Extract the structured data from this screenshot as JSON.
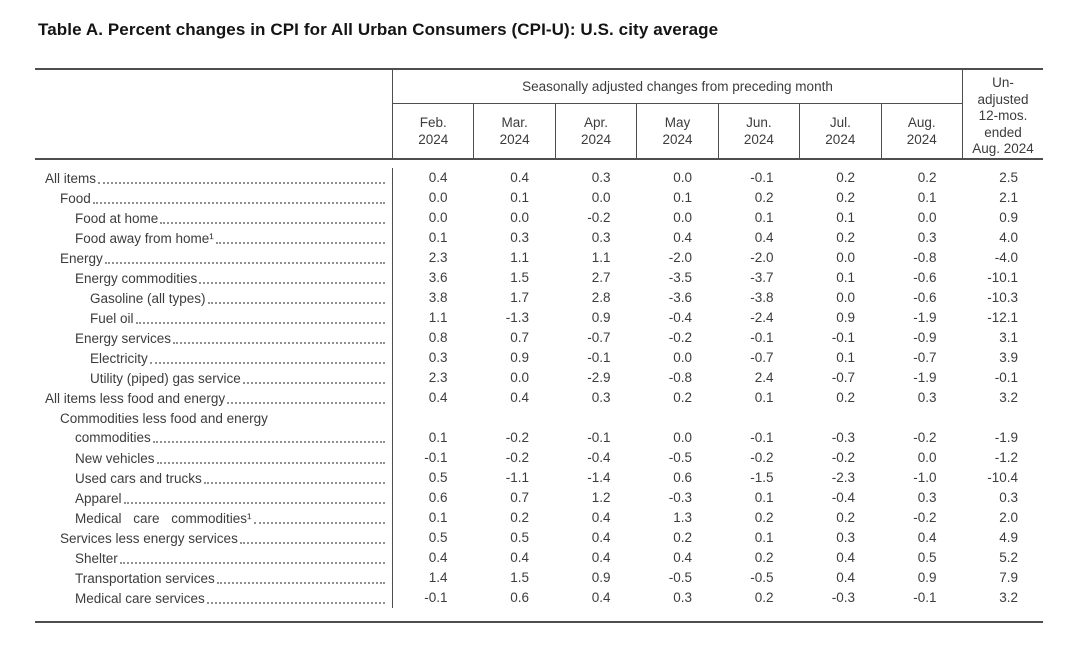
{
  "page": {
    "title": "Table A. Percent changes in CPI for All Urban Consumers (CPI-U): U.S. city average"
  },
  "table": {
    "col_group_header": "Seasonally adjusted changes from preceding month",
    "unadjusted_header_lines": [
      "Un-",
      "adjusted",
      "12-mos.",
      "ended",
      "Aug. 2024"
    ],
    "month_columns": [
      {
        "month": "Feb.",
        "year": "2024"
      },
      {
        "month": "Mar.",
        "year": "2024"
      },
      {
        "month": "Apr.",
        "year": "2024"
      },
      {
        "month": "May",
        "year": "2024"
      },
      {
        "month": "Jun.",
        "year": "2024"
      },
      {
        "month": "Jul.",
        "year": "2024"
      },
      {
        "month": "Aug.",
        "year": "2024"
      }
    ],
    "rows": [
      {
        "label": "All items",
        "indent": 0,
        "values": [
          "0.4",
          "0.4",
          "0.3",
          "0.0",
          "-0.1",
          "0.2",
          "0.2",
          "2.5"
        ]
      },
      {
        "label": "Food",
        "indent": 1,
        "values": [
          "0.0",
          "0.1",
          "0.0",
          "0.1",
          "0.2",
          "0.2",
          "0.1",
          "2.1"
        ]
      },
      {
        "label": "Food at home",
        "indent": 2,
        "values": [
          "0.0",
          "0.0",
          "-0.2",
          "0.0",
          "0.1",
          "0.1",
          "0.0",
          "0.9"
        ]
      },
      {
        "label": "Food away from home¹",
        "indent": 2,
        "values": [
          "0.1",
          "0.3",
          "0.3",
          "0.4",
          "0.4",
          "0.2",
          "0.3",
          "4.0"
        ]
      },
      {
        "label": "Energy",
        "indent": 1,
        "values": [
          "2.3",
          "1.1",
          "1.1",
          "-2.0",
          "-2.0",
          "0.0",
          "-0.8",
          "-4.0"
        ]
      },
      {
        "label": "Energy commodities",
        "indent": 2,
        "values": [
          "3.6",
          "1.5",
          "2.7",
          "-3.5",
          "-3.7",
          "0.1",
          "-0.6",
          "-10.1"
        ]
      },
      {
        "label": "Gasoline (all types)",
        "indent": 3,
        "values": [
          "3.8",
          "1.7",
          "2.8",
          "-3.6",
          "-3.8",
          "0.0",
          "-0.6",
          "-10.3"
        ]
      },
      {
        "label": "Fuel oil",
        "indent": 3,
        "values": [
          "1.1",
          "-1.3",
          "0.9",
          "-0.4",
          "-2.4",
          "0.9",
          "-1.9",
          "-12.1"
        ]
      },
      {
        "label": "Energy services",
        "indent": 2,
        "values": [
          "0.8",
          "0.7",
          "-0.7",
          "-0.2",
          "-0.1",
          "-0.1",
          "-0.9",
          "3.1"
        ]
      },
      {
        "label": "Electricity",
        "indent": 3,
        "values": [
          "0.3",
          "0.9",
          "-0.1",
          "0.0",
          "-0.7",
          "0.1",
          "-0.7",
          "3.9"
        ]
      },
      {
        "label": "Utility (piped) gas service",
        "indent": 3,
        "values": [
          "2.3",
          "0.0",
          "-2.9",
          "-0.8",
          "2.4",
          "-0.7",
          "-1.9",
          "-0.1"
        ]
      },
      {
        "label": "All items less food and energy",
        "indent": 0,
        "values": [
          "0.4",
          "0.4",
          "0.3",
          "0.2",
          "0.1",
          "0.2",
          "0.3",
          "3.2"
        ]
      },
      {
        "label": "Commodities less food and energy commodities",
        "label_lines": [
          "Commodities less food and energy",
          "commodities"
        ],
        "indent": 1,
        "values": [
          "0.1",
          "-0.2",
          "-0.1",
          "0.0",
          "-0.1",
          "-0.3",
          "-0.2",
          "-1.9"
        ]
      },
      {
        "label": "New vehicles",
        "indent": 2,
        "values": [
          "-0.1",
          "-0.2",
          "-0.4",
          "-0.5",
          "-0.2",
          "-0.2",
          "0.0",
          "-1.2"
        ]
      },
      {
        "label": "Used cars and trucks",
        "indent": 2,
        "values": [
          "0.5",
          "-1.1",
          "-1.4",
          "0.6",
          "-1.5",
          "-2.3",
          "-1.0",
          "-10.4"
        ]
      },
      {
        "label": "Apparel",
        "indent": 2,
        "values": [
          "0.6",
          "0.7",
          "1.2",
          "-0.3",
          "0.1",
          "-0.4",
          "0.3",
          "0.3"
        ]
      },
      {
        "label": "Medical care commodities¹",
        "indent": 2,
        "justify": true,
        "values": [
          "0.1",
          "0.2",
          "0.4",
          "1.3",
          "0.2",
          "0.2",
          "-0.2",
          "2.0"
        ]
      },
      {
        "label": "Services less energy services",
        "indent": 1,
        "values": [
          "0.5",
          "0.5",
          "0.4",
          "0.2",
          "0.1",
          "0.3",
          "0.4",
          "4.9"
        ]
      },
      {
        "label": "Shelter",
        "indent": 2,
        "values": [
          "0.4",
          "0.4",
          "0.4",
          "0.4",
          "0.2",
          "0.4",
          "0.5",
          "5.2"
        ]
      },
      {
        "label": "Transportation services",
        "indent": 2,
        "values": [
          "1.4",
          "1.5",
          "0.9",
          "-0.5",
          "-0.5",
          "0.4",
          "0.9",
          "7.9"
        ]
      },
      {
        "label": "Medical care services",
        "indent": 2,
        "values": [
          "-0.1",
          "0.6",
          "0.4",
          "0.3",
          "0.2",
          "-0.3",
          "-0.1",
          "3.2"
        ]
      }
    ]
  },
  "colors": {
    "border": "#4e4e4e",
    "text": "#3c3c3c",
    "title": "#141414",
    "leader_dots": "#909090"
  }
}
